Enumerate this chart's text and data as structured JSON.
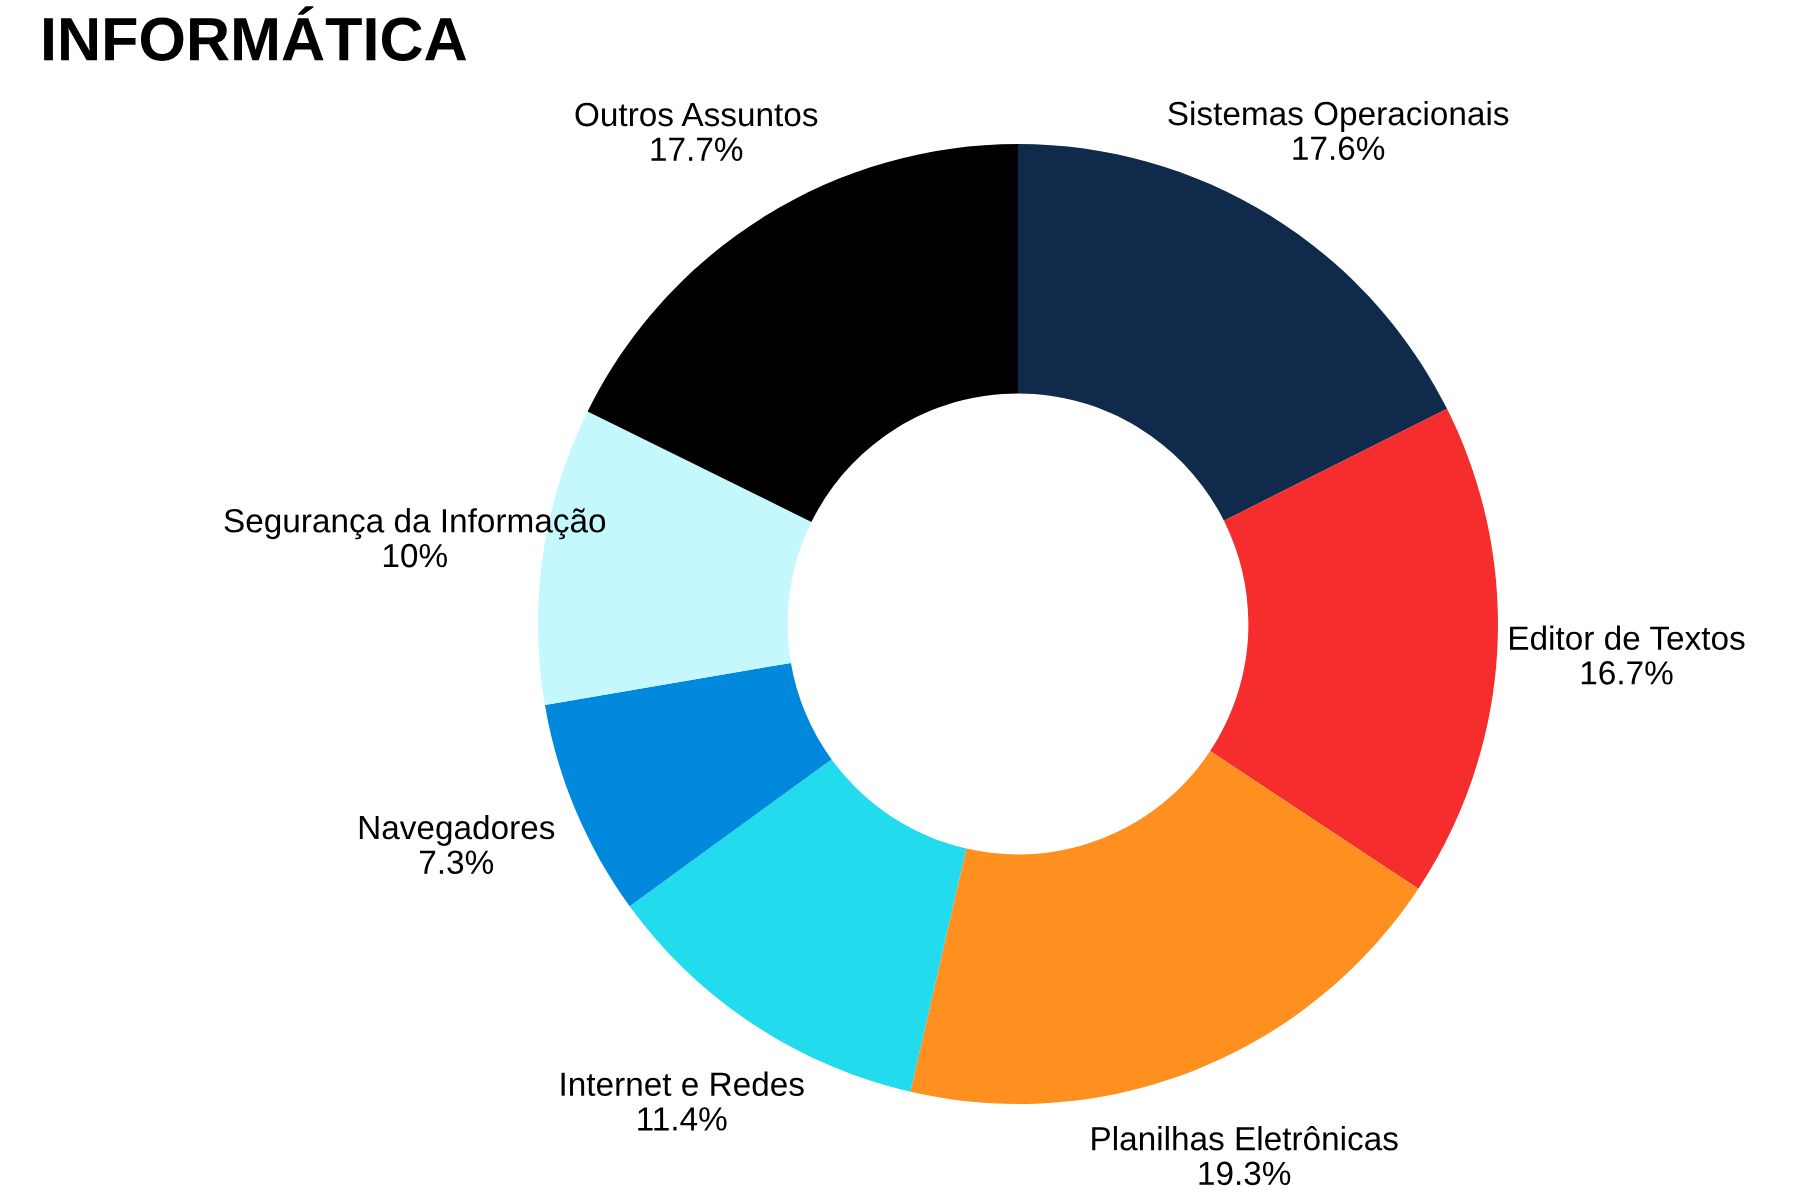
{
  "chart_data": {
    "type": "donut",
    "title": "INFORMÁTICA",
    "categories": [
      "Sistemas Operacionais",
      "Editor de Textos",
      "Planilhas Eletrônicas",
      "Internet e Redes",
      "Navegadores",
      "Segurança da Informação",
      "Outros Assuntos"
    ],
    "values": [
      17.6,
      16.7,
      19.3,
      11.4,
      7.3,
      10,
      17.7
    ],
    "value_labels": [
      "17.6%",
      "16.7%",
      "19.3%",
      "11.4%",
      "7.3%",
      "10%",
      "17.7%"
    ],
    "colors": [
      "#0f2a4a",
      "#f52d2d",
      "#ff9020",
      "#22dced",
      "#0088dd",
      "#c4f8fc",
      "#000000"
    ]
  }
}
